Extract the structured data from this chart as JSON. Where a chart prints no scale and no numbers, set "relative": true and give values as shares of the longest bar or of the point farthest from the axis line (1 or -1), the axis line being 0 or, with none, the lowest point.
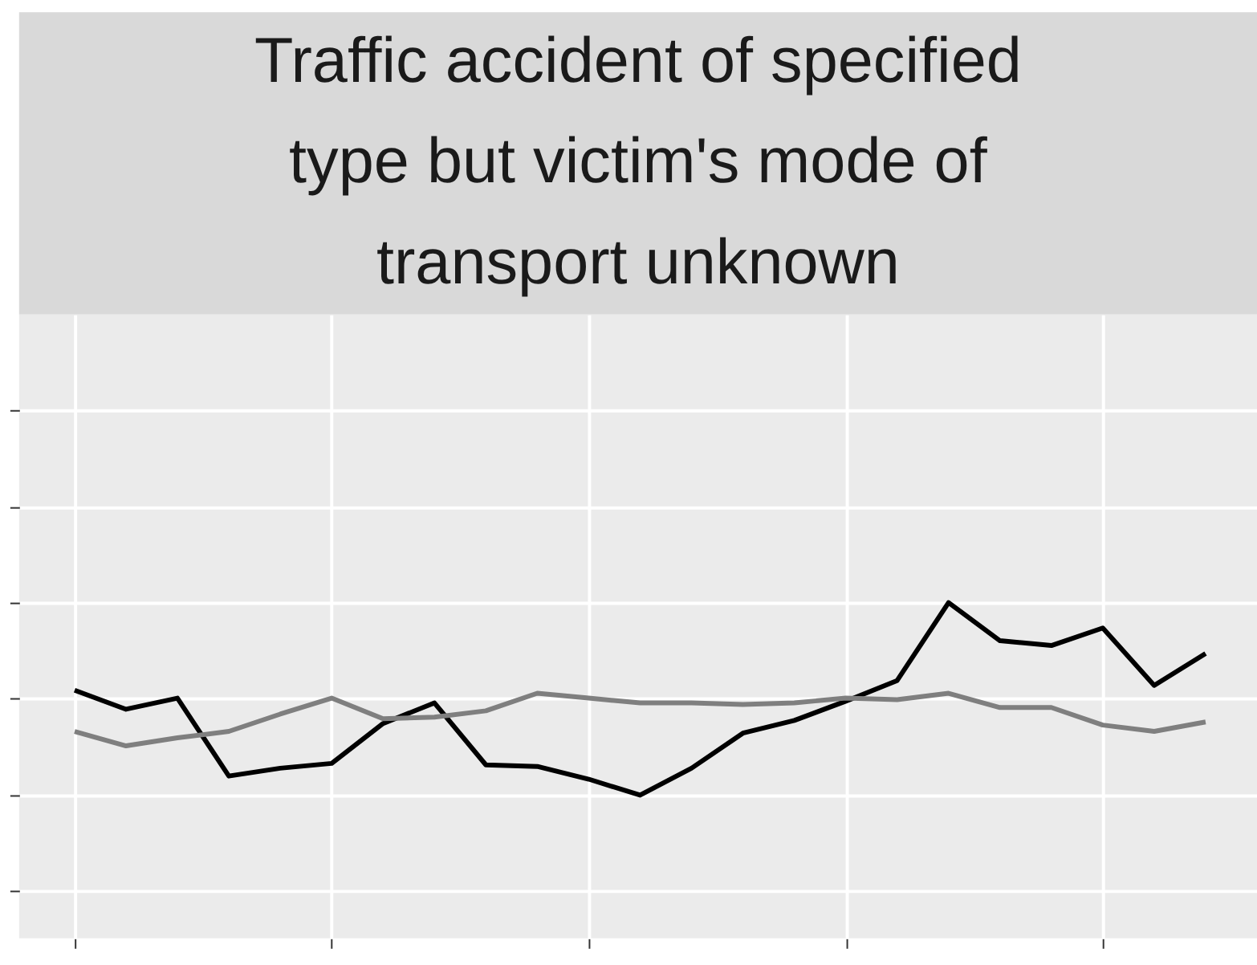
{
  "chart_data": {
    "type": "line",
    "title": "Traffic accident of specified type but victim's mode of transport unknown",
    "categories": [
      null,
      null,
      null,
      null,
      null,
      null,
      null,
      null,
      null,
      null,
      null,
      null,
      null,
      null,
      null,
      null,
      null,
      null,
      null,
      null,
      null,
      null,
      null
    ],
    "relative": true,
    "grid": true,
    "legend": false,
    "marker": "none",
    "line_style": "solid",
    "series": [
      {
        "color": "#000000",
        "values": [
          0.545,
          0.446,
          0.504,
          0.099,
          0.14,
          0.165,
          0.372,
          0.479,
          0.157,
          0.149,
          0.083,
          0,
          0.14,
          0.322,
          0.388,
          0.488,
          0.595,
          1,
          0.802,
          0.777,
          0.868,
          0.57,
          0.736
        ]
      },
      {
        "color": "#7f7f7f",
        "values": [
          0.331,
          0.256,
          0.298,
          0.331,
          0.421,
          0.504,
          0.397,
          0.405,
          0.438,
          0.529,
          0.504,
          0.479,
          0.479,
          0.471,
          0.479,
          0.504,
          0.496,
          0.529,
          0.455,
          0.455,
          0.364,
          0.331,
          0.38
        ]
      }
    ]
  }
}
